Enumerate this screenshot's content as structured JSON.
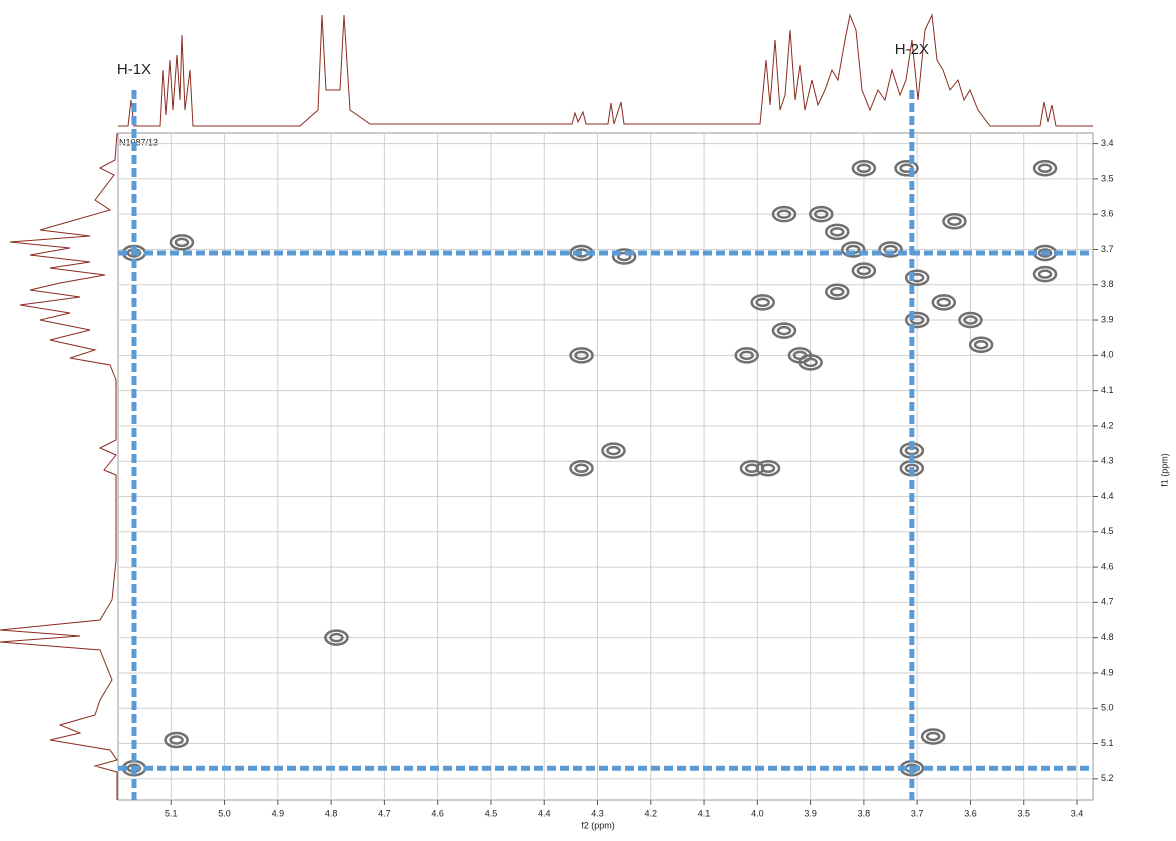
{
  "chart_data": {
    "type": "scatter",
    "sample_label": "N1087/13",
    "xlabel": "f2 (ppm)",
    "ylabel": "f1 (ppm)",
    "xlim": [
      5.2,
      3.37
    ],
    "ylim": [
      3.37,
      5.26
    ],
    "xticks": [
      5.1,
      {
        "value": 5.0,
        "label": "5.0"
      },
      4.9,
      4.8,
      4.7,
      4.6,
      4.5,
      4.4,
      4.3,
      4.2,
      4.1,
      {
        "value": 4.0,
        "label": "4.0"
      },
      3.9,
      3.8,
      3.7,
      3.6,
      3.5,
      3.4
    ],
    "yticks": [
      3.4,
      3.5,
      3.6,
      3.7,
      3.8,
      3.9,
      {
        "value": 4.0,
        "label": "4.0"
      },
      4.1,
      4.2,
      4.3,
      4.4,
      4.5,
      4.6,
      4.7,
      4.8,
      4.9,
      {
        "value": 5.0,
        "label": "5.0"
      },
      5.1,
      5.2
    ],
    "grid": true,
    "color": "#707070",
    "x": [
      5.17,
      5.08,
      5.17,
      5.09,
      4.33,
      4.25,
      4.33,
      4.27,
      4.33,
      4.01,
      3.98,
      3.71,
      3.71,
      3.8,
      3.72,
      3.46,
      3.46,
      3.46,
      3.71,
      3.67,
      4.79,
      3.95,
      3.88,
      3.85,
      3.82,
      3.75,
      3.63,
      3.8,
      3.7,
      3.65,
      3.6,
      3.7,
      3.58,
      3.99,
      3.95,
      3.92,
      3.85,
      4.02,
      3.9
    ],
    "values": [
      5.17,
      3.68,
      3.71,
      5.09,
      3.71,
      3.72,
      4.0,
      4.27,
      4.32,
      4.32,
      4.32,
      4.32,
      4.27,
      3.47,
      3.47,
      3.47,
      3.71,
      3.77,
      5.17,
      5.08,
      4.8,
      3.6,
      3.6,
      3.65,
      3.7,
      3.7,
      3.62,
      3.76,
      3.78,
      3.85,
      3.9,
      3.9,
      3.97,
      3.85,
      3.93,
      4.0,
      3.82,
      4.0,
      4.02
    ],
    "guides": [
      {
        "label": "H-1X",
        "ppm": 5.17
      },
      {
        "label": "H-2X",
        "ppm": 3.71
      }
    ],
    "guide_color": "#5b9bd5",
    "spectrum_color": "#8b2a1e"
  }
}
